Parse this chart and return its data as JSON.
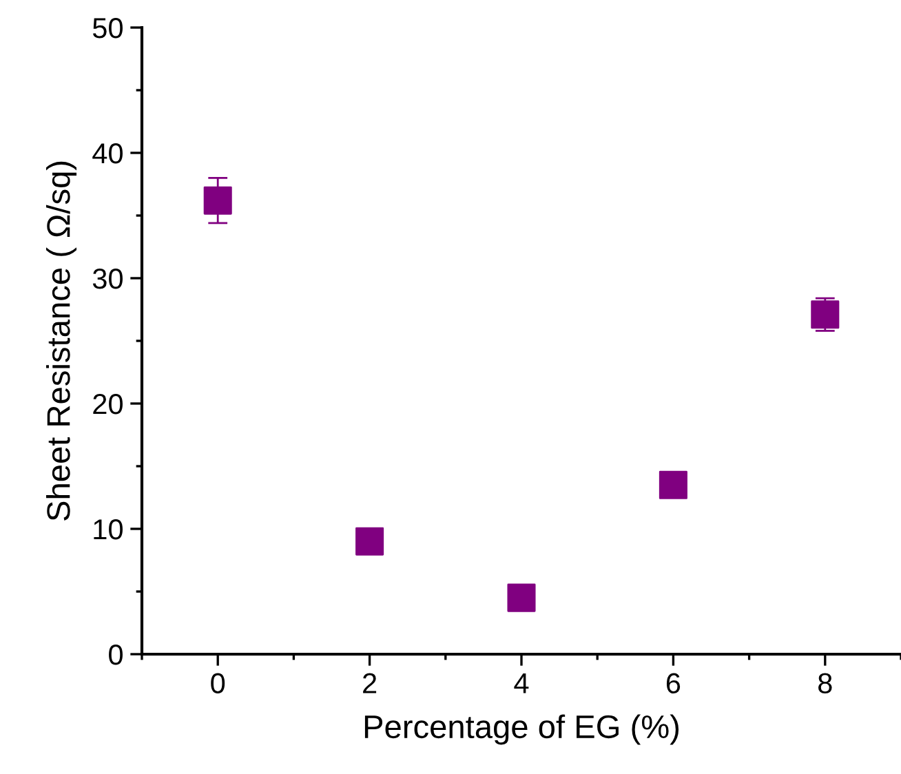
{
  "chart_data": {
    "type": "scatter",
    "xlabel": "Percentage of EG (%)",
    "ylabel": "Sheet Resistance ( Ω/sq)",
    "x": [
      0,
      2,
      4,
      6,
      8
    ],
    "series": [
      {
        "color": "#800080",
        "values": [
          36.2,
          9.0,
          4.5,
          13.5,
          27.1
        ],
        "errors": [
          1.8,
          null,
          null,
          null,
          1.3
        ]
      }
    ],
    "xlim": [
      -1,
      9
    ],
    "xticks": [
      0,
      2,
      4,
      6,
      8
    ],
    "ylim": [
      0,
      50
    ],
    "yticks": [
      0,
      10,
      20,
      30,
      40,
      50
    ],
    "marker": "square",
    "grid": false,
    "legend": false
  }
}
